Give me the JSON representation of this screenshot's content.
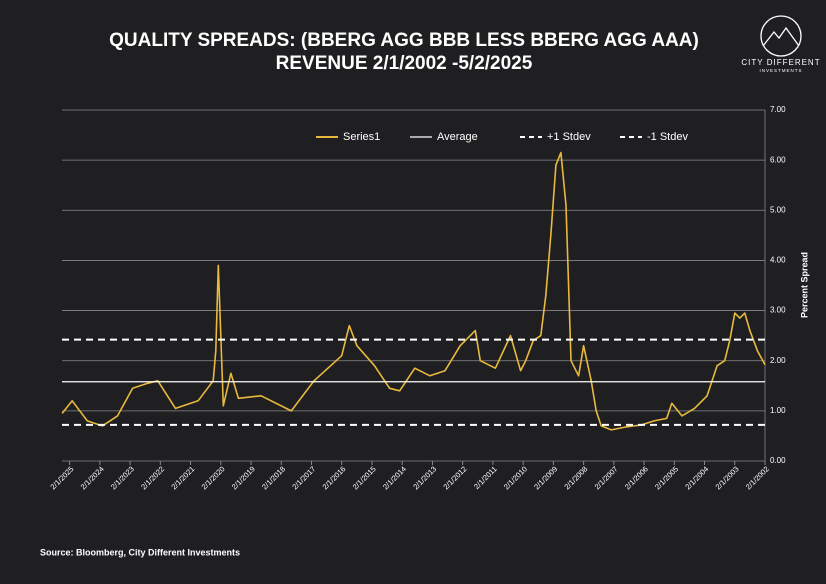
{
  "chart_data": {
    "type": "line",
    "title": "QUALITY SPREADS: (BBERG AGG BBB LESS BBERG AGG AAA)",
    "subtitle": "REVENUE 2/1/2002 -5/2/2025",
    "y_label": "Percent Spread",
    "source": "Source: Bloomberg, City Different Investments",
    "logo": {
      "name": "CITY DIFFERENT",
      "tagline": "INVESTMENTS"
    },
    "x_reversed": true,
    "xlim": [
      "5/2/2025",
      "2/1/2002"
    ],
    "xticks": [
      "2/1/2025",
      "2/1/2024",
      "2/1/2023",
      "2/1/2022",
      "2/1/2021",
      "2/1/2020",
      "2/1/2019",
      "2/1/2018",
      "2/1/2017",
      "2/1/2016",
      "2/1/2015",
      "2/1/2014",
      "2/1/2013",
      "2/1/2012",
      "2/1/2011",
      "2/1/2010",
      "2/1/2009",
      "2/1/2008",
      "2/1/2007",
      "2/1/2006",
      "2/1/2005",
      "2/1/2004",
      "2/1/2003",
      "2/1/2002"
    ],
    "ylim": [
      0,
      7
    ],
    "yticks": [
      {
        "value": 0,
        "label": "0.00"
      },
      {
        "value": 1,
        "label": "1.00"
      },
      {
        "value": 2,
        "label": "2.00"
      },
      {
        "value": 3,
        "label": "3.00"
      },
      {
        "value": 4,
        "label": "4.00"
      },
      {
        "value": 5,
        "label": "5.00"
      },
      {
        "value": 6,
        "label": "6.00"
      },
      {
        "value": 7,
        "label": "7.00"
      }
    ],
    "grid": true,
    "series": [
      {
        "name": "Series1",
        "color": "#e8b93c",
        "x": [
          "2/1/2002",
          "5/1/2002",
          "8/1/2002",
          "10/1/2002",
          "12/1/2002",
          "2/1/2003",
          "4/1/2003",
          "6/1/2003",
          "9/1/2003",
          "1/1/2004",
          "6/1/2004",
          "11/1/2004",
          "3/1/2005",
          "5/1/2005",
          "10/1/2005",
          "3/1/2006",
          "9/1/2006",
          "3/1/2007",
          "7/1/2007",
          "9/1/2007",
          "11/1/2007",
          "2/1/2008",
          "4/1/2008",
          "7/1/2008",
          "9/1/2008",
          "11/1/2008",
          "1/1/2009",
          "3/1/2009",
          "5/1/2009",
          "7/1/2009",
          "10/1/2009",
          "1/1/2010",
          "3/1/2010",
          "7/1/2010",
          "1/1/2011",
          "7/1/2011",
          "9/1/2011",
          "3/1/2012",
          "9/1/2012",
          "3/1/2013",
          "9/1/2013",
          "3/1/2014",
          "7/1/2014",
          "1/1/2015",
          "8/1/2015",
          "11/1/2015",
          "2/1/2016",
          "1/1/2017",
          "10/1/2017",
          "10/1/2018",
          "7/1/2019",
          "10/1/2019",
          "1/1/2020",
          "3/1/2020",
          "4/1/2020",
          "5/1/2020",
          "11/1/2020",
          "8/1/2021",
          "3/1/2022",
          "7/1/2022",
          "1/1/2023",
          "7/1/2023",
          "1/1/2024",
          "7/1/2024",
          "1/1/2025",
          "5/1/2025"
        ],
        "values": [
          1.92,
          2.2,
          2.6,
          2.95,
          2.85,
          2.95,
          2.4,
          2.0,
          1.9,
          1.3,
          1.05,
          0.9,
          1.15,
          0.85,
          0.8,
          0.72,
          0.68,
          0.62,
          0.7,
          1.0,
          1.6,
          2.3,
          1.7,
          2.0,
          5.1,
          6.15,
          5.9,
          4.5,
          3.3,
          2.5,
          2.4,
          2.0,
          1.8,
          2.5,
          1.85,
          2.0,
          2.6,
          2.3,
          1.8,
          1.7,
          1.85,
          1.4,
          1.45,
          1.9,
          2.3,
          2.7,
          2.1,
          1.6,
          1.0,
          1.3,
          1.25,
          1.75,
          1.1,
          3.9,
          2.2,
          1.6,
          1.2,
          1.05,
          1.6,
          1.55,
          1.45,
          0.9,
          0.7,
          0.8,
          1.2,
          0.95
        ]
      },
      {
        "name": "Average",
        "color": "#ffffff",
        "level": 1.58
      },
      {
        "name": "+1 Stdev",
        "color": "#ffffff",
        "dashed": true,
        "level": 2.42
      },
      {
        "name": "-1 Stdev",
        "color": "#ffffff",
        "dashed": true,
        "level": 0.72
      }
    ]
  }
}
